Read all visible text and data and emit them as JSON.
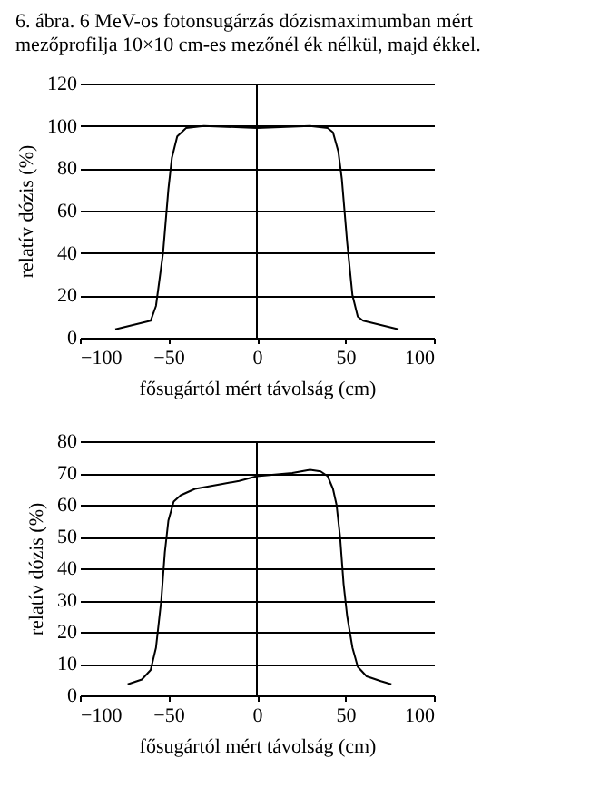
{
  "chart_data": [
    {
      "type": "line",
      "title": "6. ábra. 6 MeV-os fotonsugárzás dózismaximumban mért mezőprofilja 10×10 cm-es mezőnél ék nélkül, majd ékkel.",
      "xlabel": "fősugártól mért távolság (cm)",
      "ylabel": "relatív dózis (%)",
      "xlim": [
        -100,
        100
      ],
      "xticks": [
        -100,
        -50,
        0,
        50,
        100
      ],
      "ylim": [
        0,
        120
      ],
      "yticks": [
        0,
        20,
        40,
        60,
        80,
        100,
        120
      ],
      "grid": "y",
      "ref_lines": [
        {
          "axis": "x",
          "value": 0
        }
      ],
      "series": [
        {
          "color": "#000000",
          "x": [
            -80,
            -70,
            -60,
            -57,
            -53,
            -50,
            -48,
            -45,
            -40,
            -30,
            0,
            30,
            40,
            43,
            46,
            48,
            51,
            54,
            57,
            60,
            70,
            80
          ],
          "values": [
            4,
            6,
            8,
            15,
            40,
            70,
            85,
            95,
            99,
            100,
            99,
            100,
            99,
            97,
            88,
            75,
            45,
            20,
            10,
            8,
            6,
            4
          ]
        }
      ]
    },
    {
      "type": "line",
      "xlabel": "fősugártól mért távolság (cm)",
      "ylabel": "relatív dózis (%)",
      "xlim": [
        -100,
        100
      ],
      "xticks": [
        -100,
        -50,
        0,
        50,
        100
      ],
      "ylim": [
        0,
        80
      ],
      "yticks": [
        0,
        10,
        20,
        30,
        40,
        50,
        60,
        70,
        80
      ],
      "grid": "y",
      "ref_lines": [
        {
          "axis": "x",
          "value": 0
        }
      ],
      "series": [
        {
          "color": "#000000",
          "x": [
            -73,
            -65,
            -60,
            -57,
            -54,
            -52,
            -50,
            -47,
            -43,
            -35,
            -20,
            -10,
            0,
            10,
            20,
            30,
            36,
            40,
            43,
            45,
            47,
            49,
            51,
            54,
            57,
            62,
            70,
            76
          ],
          "values": [
            3.5,
            5,
            8,
            15,
            30,
            45,
            55,
            61,
            63,
            65,
            66.5,
            67.5,
            69,
            69.5,
            70,
            71,
            70.5,
            69,
            65,
            60,
            50,
            35,
            25,
            15,
            9,
            6,
            4.5,
            3.5
          ]
        }
      ]
    }
  ]
}
